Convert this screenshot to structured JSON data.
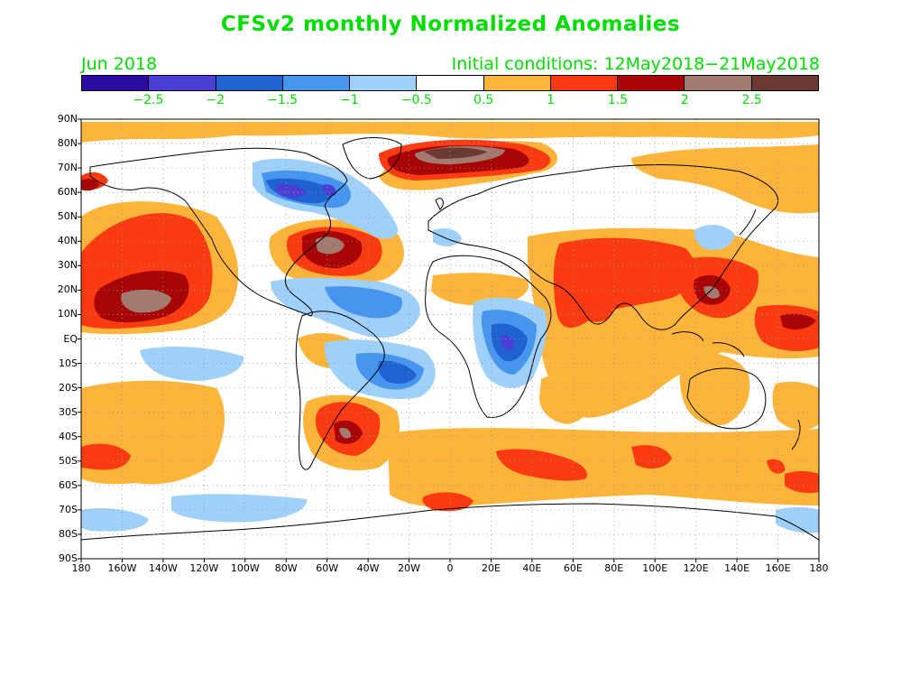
{
  "title": "CFSv2 monthly Normalized Anomalies",
  "period_label": "Jun 2018",
  "initial_conditions": "Initial conditions: 12May2018−21May2018",
  "colorbar": {
    "colors": [
      "#2a0ca0",
      "#4a3ed6",
      "#1f62d0",
      "#4696f0",
      "#9fd0fa",
      "#ffffff",
      "#fcb53a",
      "#fa3a10",
      "#a80606",
      "#a27a70",
      "#6a3a30"
    ],
    "tick_labels": [
      "−2.5",
      "−2",
      "−1.5",
      "−1",
      "−0.5",
      "0.5",
      "1",
      "1.5",
      "2",
      "2.5"
    ]
  },
  "axes": {
    "lat_labels": [
      "90N",
      "80N",
      "70N",
      "60N",
      "50N",
      "40N",
      "30N",
      "20N",
      "10N",
      "EQ",
      "10S",
      "20S",
      "30S",
      "40S",
      "50S",
      "60S",
      "70S",
      "80S",
      "90S"
    ],
    "lon_labels": [
      "180",
      "160W",
      "140W",
      "120W",
      "100W",
      "80W",
      "60W",
      "40W",
      "20W",
      "0",
      "20E",
      "40E",
      "60E",
      "80E",
      "100E",
      "120E",
      "140E",
      "160E",
      "180"
    ],
    "lat_range": [
      -90,
      90
    ],
    "lon_range": [
      -180,
      180
    ],
    "grid": "dotted"
  },
  "map_colors": {
    "ocean_land_background": "#ffffff",
    "coastline": "#000000"
  }
}
